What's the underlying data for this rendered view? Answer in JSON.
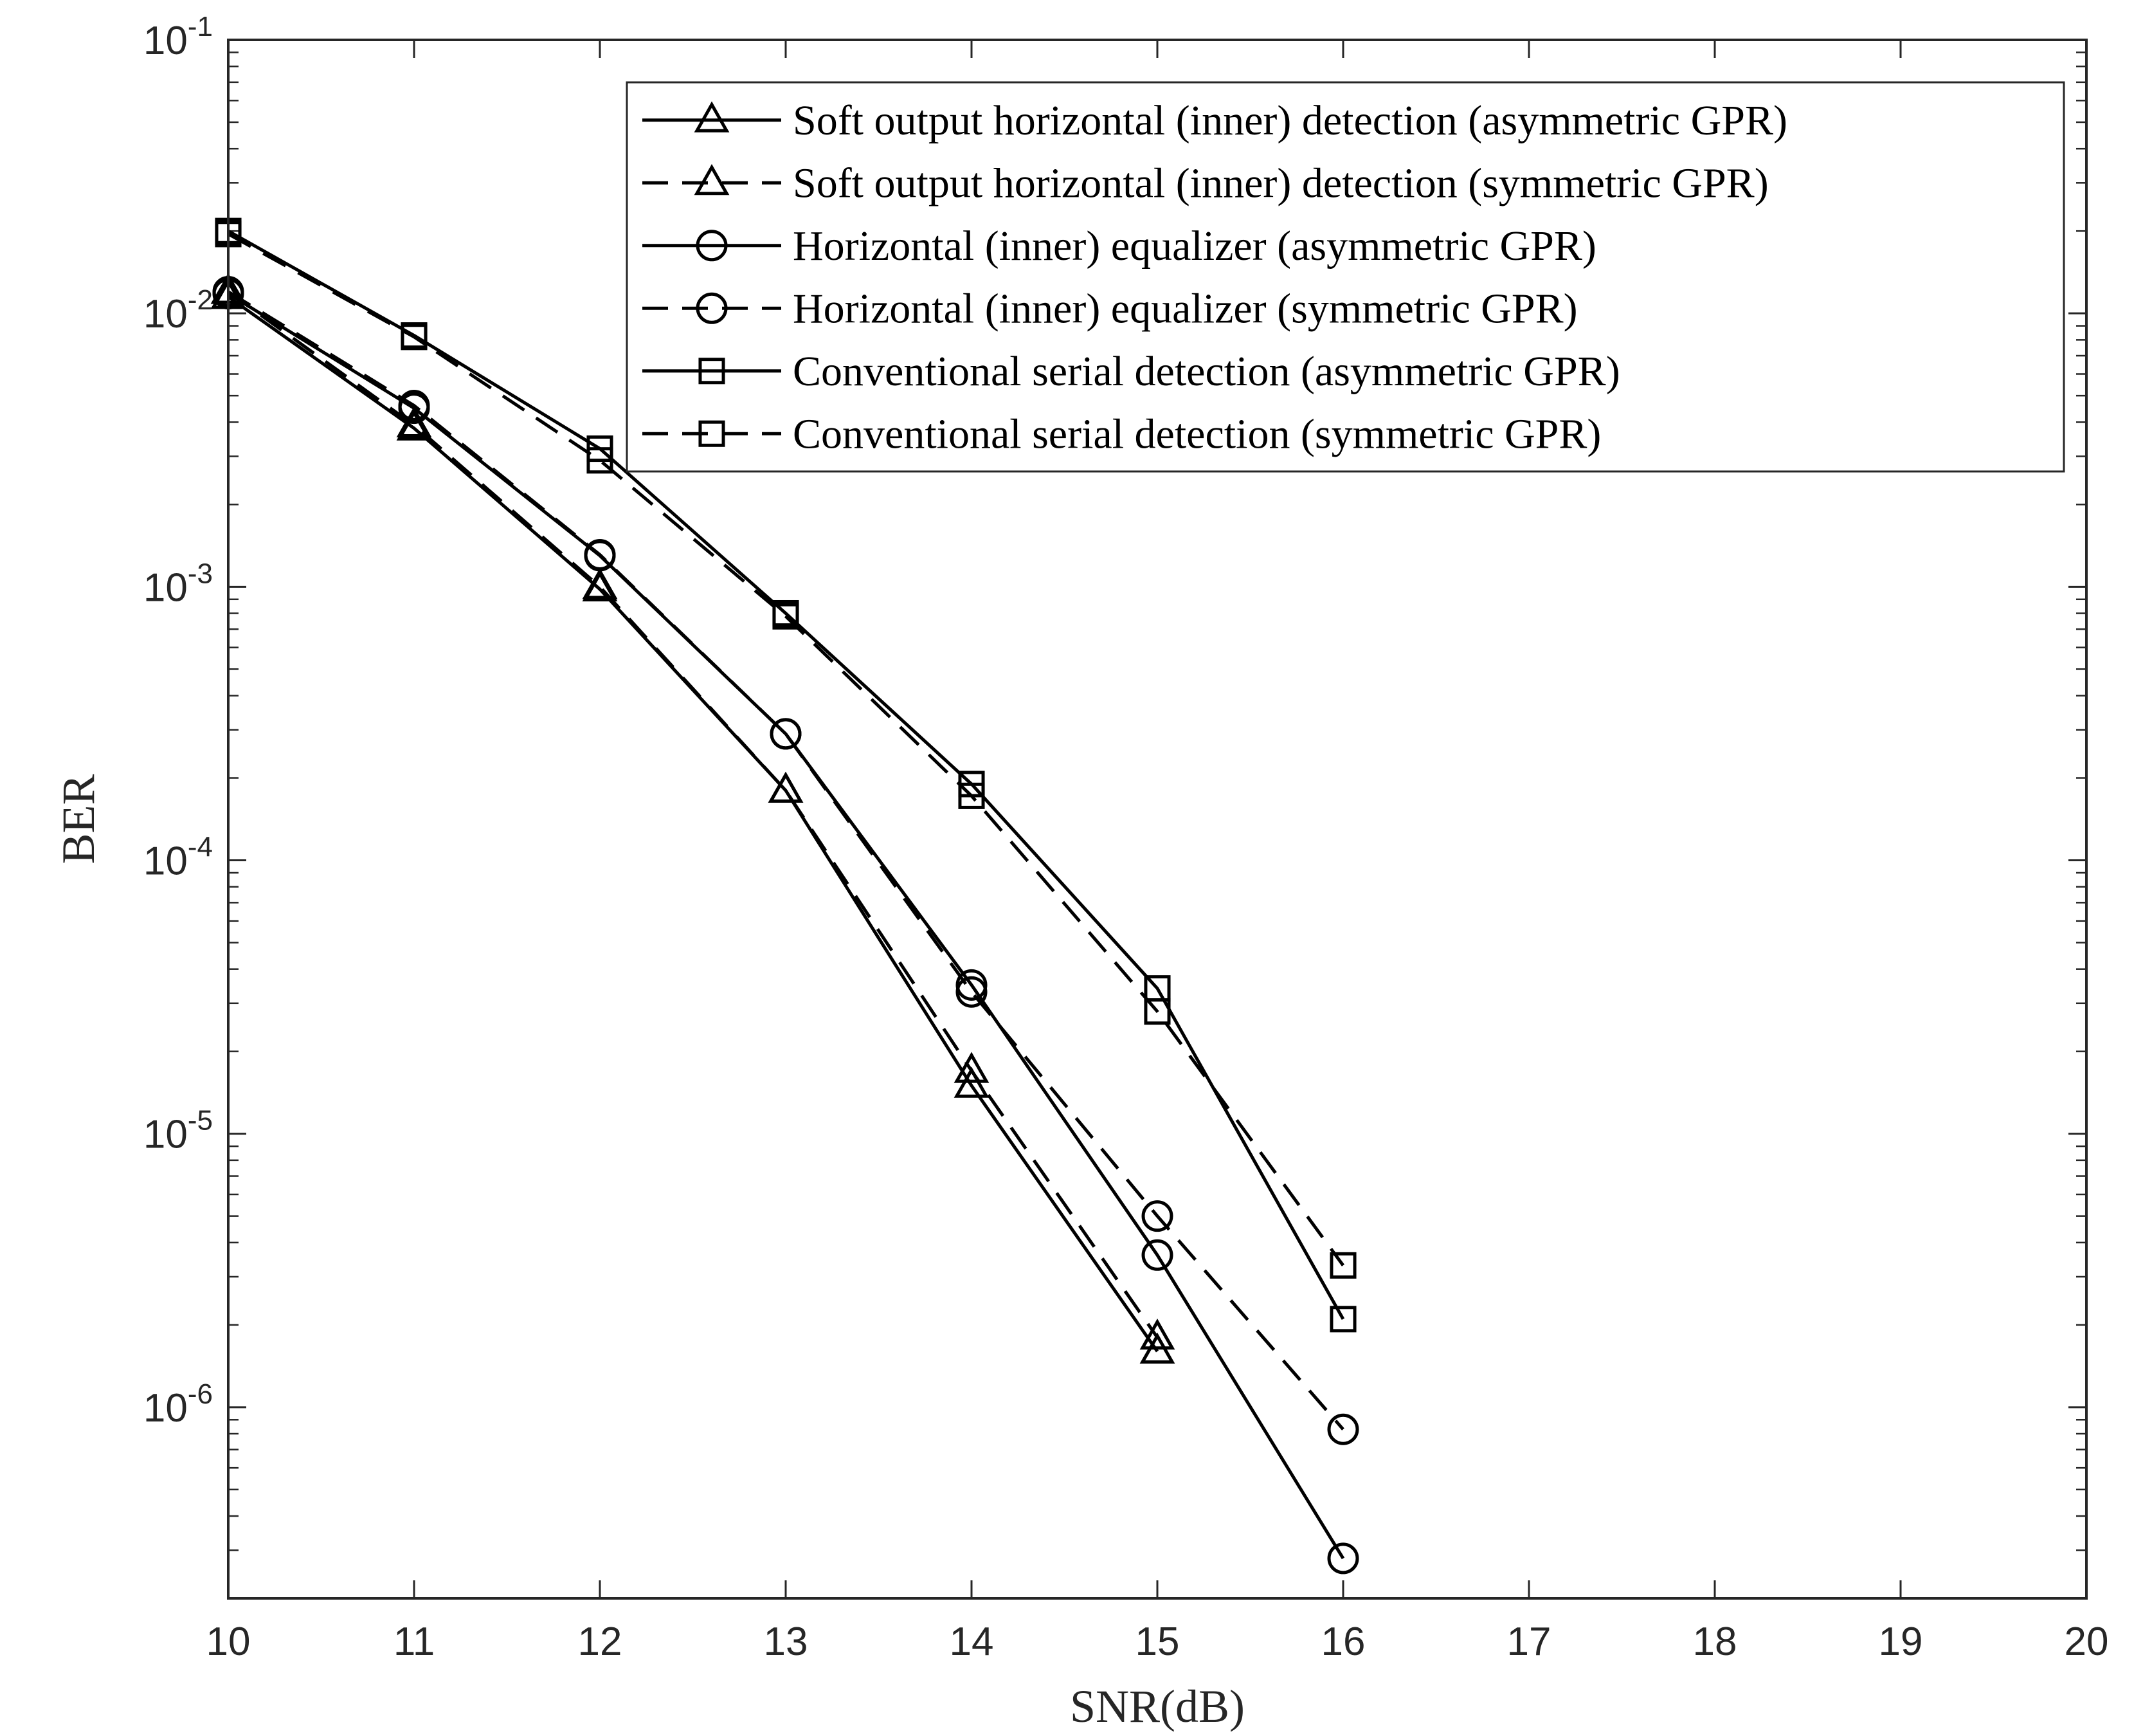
{
  "chart_data": {
    "type": "line",
    "xlabel": "SNR(dB)",
    "ylabel": "BER",
    "yscale": "log",
    "xlim": [
      10,
      20
    ],
    "ylim": [
      2e-07,
      0.1
    ],
    "grid": false,
    "legend_position": "top-right",
    "x_ticks": [
      10,
      11,
      12,
      13,
      14,
      15,
      16,
      17,
      18,
      19,
      20
    ],
    "x_tick_labels": [
      "10",
      "11",
      "12",
      "13",
      "14",
      "15",
      "16",
      "17",
      "18",
      "19",
      "20"
    ],
    "y_ticks": [
      {
        "value": 0.1,
        "base": "10",
        "exp": "-1"
      },
      {
        "value": 0.01,
        "base": "10",
        "exp": "-2"
      },
      {
        "value": 0.001,
        "base": "10",
        "exp": "-3"
      },
      {
        "value": 0.0001,
        "base": "10",
        "exp": "-4"
      },
      {
        "value": 1e-05,
        "base": "10",
        "exp": "-5"
      },
      {
        "value": 1e-06,
        "base": "10",
        "exp": "-6"
      }
    ],
    "series": [
      {
        "name": "Soft output horizontal (inner) detection (asymmetric GPR)",
        "marker": "triangle",
        "dash": "solid",
        "x": [
          10,
          11,
          12,
          13,
          14,
          15
        ],
        "values": [
          0.0115,
          0.0038,
          0.00098,
          0.00018,
          1.5e-05,
          1.6e-06
        ]
      },
      {
        "name": "Soft output horizontal (inner) detection (symmetric GPR)",
        "marker": "triangle",
        "dash": "dashed",
        "x": [
          10,
          11,
          12,
          13,
          14,
          15
        ],
        "values": [
          0.012,
          0.0039,
          0.001,
          0.00018,
          1.7e-05,
          1.8e-06
        ]
      },
      {
        "name": "Horizontal (inner) equalizer (asymmetric GPR)",
        "marker": "circle",
        "dash": "solid",
        "x": [
          10,
          11,
          12,
          13,
          14,
          15,
          16
        ],
        "values": [
          0.0118,
          0.0045,
          0.0013,
          0.00029,
          3.5e-05,
          3.6e-06,
          2.8e-07
        ]
      },
      {
        "name": "Horizontal (inner) equalizer (symmetric GPR)",
        "marker": "circle",
        "dash": "dashed",
        "x": [
          10,
          11,
          12,
          13,
          14,
          15,
          16
        ],
        "values": [
          0.012,
          0.0046,
          0.00131,
          0.00029,
          3.3e-05,
          5e-06,
          8.3e-07
        ]
      },
      {
        "name": "Conventional serial detection (asymmetric GPR)",
        "marker": "square",
        "dash": "solid",
        "x": [
          10,
          11,
          12,
          13,
          14,
          15,
          16
        ],
        "values": [
          0.02,
          0.0083,
          0.0032,
          0.0008,
          0.00019,
          3.4e-05,
          2.1e-06
        ]
      },
      {
        "name": "Conventional serial detection (symmetric GPR)",
        "marker": "square",
        "dash": "dashed",
        "x": [
          10,
          11,
          12,
          13,
          14,
          15,
          16
        ],
        "values": [
          0.0195,
          0.0082,
          0.0029,
          0.00078,
          0.000172,
          2.8e-05,
          3.3e-06
        ]
      }
    ]
  }
}
